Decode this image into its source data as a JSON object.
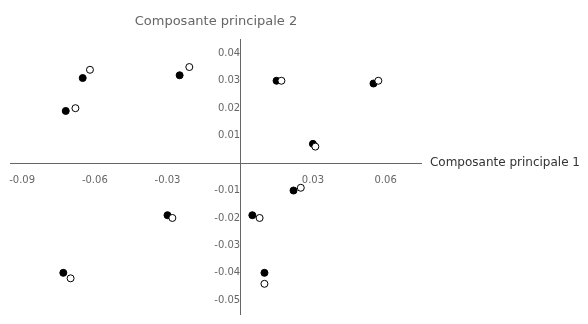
{
  "chart_data": {
    "type": "scatter",
    "title": "Composante principale 2",
    "xlabel": "Composante principale 1",
    "xlim": [
      -0.095,
      0.075
    ],
    "ylim": [
      -0.055,
      0.045
    ],
    "xticks": [
      -0.09,
      -0.06,
      -0.03,
      0.03,
      0.06
    ],
    "yticks": [
      -0.05,
      -0.04,
      -0.03,
      -0.02,
      -0.01,
      0.01,
      0.02,
      0.03,
      0.04
    ],
    "grid": false,
    "series": [
      {
        "color": "#000000",
        "marker": "circle",
        "x": [
          -0.065,
          -0.025,
          0.015,
          0.055,
          -0.072,
          0.03,
          0.022,
          -0.03,
          0.005,
          -0.073,
          0.01
        ],
        "values": [
          0.031,
          0.032,
          0.03,
          0.029,
          0.019,
          0.007,
          -0.01,
          -0.019,
          -0.019,
          -0.04,
          -0.04
        ]
      },
      {
        "color": "#000000",
        "marker": "open",
        "x": [
          -0.062,
          -0.021,
          0.017,
          0.057,
          -0.068,
          0.031,
          0.025,
          -0.028,
          0.008,
          -0.07,
          0.01
        ],
        "values": [
          0.034,
          0.035,
          0.03,
          0.03,
          0.02,
          0.006,
          -0.009,
          -0.02,
          -0.02,
          -0.042,
          -0.044
        ]
      }
    ]
  }
}
